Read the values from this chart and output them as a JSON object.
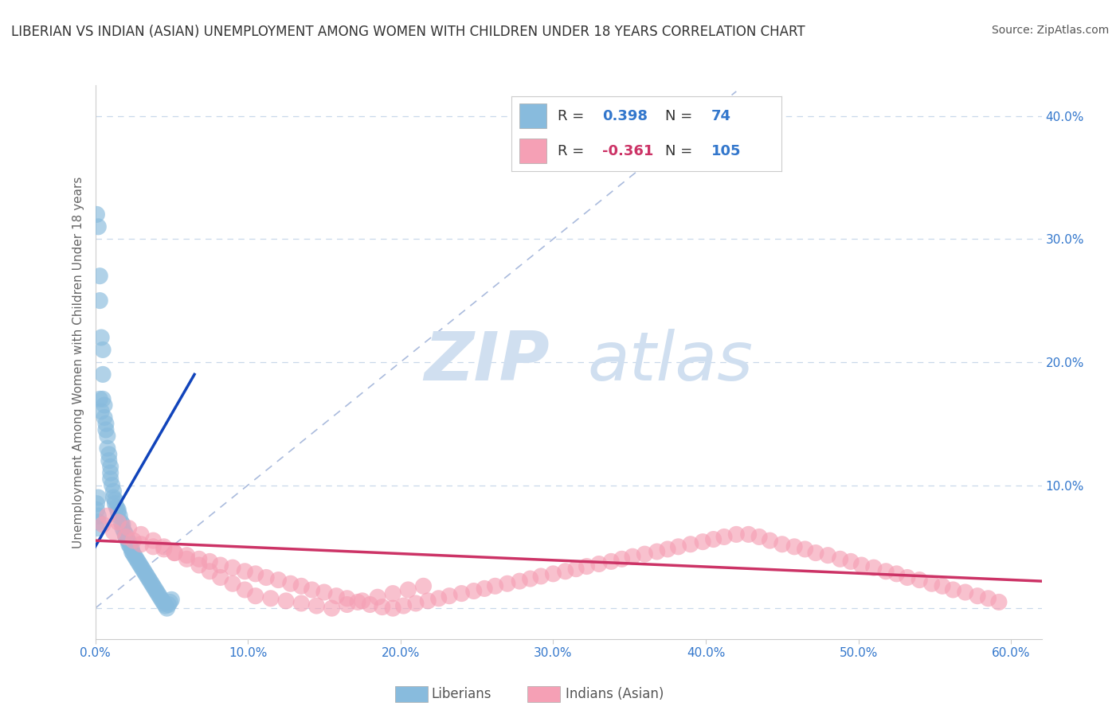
{
  "title": "LIBERIAN VS INDIAN (ASIAN) UNEMPLOYMENT AMONG WOMEN WITH CHILDREN UNDER 18 YEARS CORRELATION CHART",
  "source": "Source: ZipAtlas.com",
  "ylabel": "Unemployment Among Women with Children Under 18 years",
  "xmin": 0.0,
  "xmax": 0.62,
  "ymin": -0.025,
  "ymax": 0.425,
  "yticks": [
    0.0,
    0.1,
    0.2,
    0.3,
    0.4
  ],
  "ytick_labels": [
    "",
    "10.0%",
    "20.0%",
    "30.0%",
    "40.0%"
  ],
  "xticks": [
    0.0,
    0.1,
    0.2,
    0.3,
    0.4,
    0.5,
    0.6
  ],
  "xtick_labels": [
    "0.0%",
    "10.0%",
    "20.0%",
    "30.0%",
    "40.0%",
    "50.0%",
    "60.0%"
  ],
  "grid_color": "#c8d8ea",
  "background_color": "#ffffff",
  "liberian_color": "#88bbdd",
  "indian_color": "#f5a0b5",
  "liberian_line_color": "#1144bb",
  "indian_line_color": "#cc3366",
  "diagonal_color": "#aabbdd",
  "title_color": "#333333",
  "title_fontsize": 12,
  "axis_label_color": "#3377cc",
  "source_color": "#555555",
  "source_fontsize": 10,
  "R_liberian": 0.398,
  "N_liberian": 74,
  "R_indian": -0.361,
  "N_indian": 105,
  "watermark_zip": "ZIP",
  "watermark_atlas": "atlas",
  "watermark_color": "#d0dff0",
  "legend_color_R": "#3377cc",
  "legend_color_Rneg": "#cc3366",
  "liberian_points_x": [
    0.001,
    0.002,
    0.003,
    0.003,
    0.004,
    0.005,
    0.005,
    0.005,
    0.006,
    0.006,
    0.007,
    0.007,
    0.008,
    0.008,
    0.009,
    0.009,
    0.01,
    0.01,
    0.01,
    0.011,
    0.012,
    0.012,
    0.013,
    0.013,
    0.014,
    0.015,
    0.015,
    0.016,
    0.017,
    0.018,
    0.018,
    0.019,
    0.02,
    0.02,
    0.021,
    0.022,
    0.022,
    0.023,
    0.024,
    0.024,
    0.025,
    0.026,
    0.027,
    0.028,
    0.029,
    0.03,
    0.031,
    0.032,
    0.033,
    0.034,
    0.035,
    0.036,
    0.037,
    0.038,
    0.039,
    0.04,
    0.041,
    0.042,
    0.043,
    0.044,
    0.045,
    0.046,
    0.047,
    0.048,
    0.049,
    0.05,
    0.003,
    0.004,
    0.002,
    0.001,
    0.001,
    0.002,
    0.002,
    0.001
  ],
  "liberian_points_y": [
    0.32,
    0.31,
    0.27,
    0.25,
    0.22,
    0.21,
    0.19,
    0.17,
    0.165,
    0.155,
    0.15,
    0.145,
    0.14,
    0.13,
    0.125,
    0.12,
    0.115,
    0.11,
    0.105,
    0.1,
    0.095,
    0.09,
    0.088,
    0.085,
    0.082,
    0.08,
    0.078,
    0.075,
    0.07,
    0.068,
    0.065,
    0.062,
    0.06,
    0.058,
    0.056,
    0.054,
    0.052,
    0.05,
    0.048,
    0.046,
    0.044,
    0.042,
    0.04,
    0.038,
    0.036,
    0.034,
    0.032,
    0.03,
    0.028,
    0.026,
    0.024,
    0.022,
    0.02,
    0.018,
    0.016,
    0.014,
    0.012,
    0.01,
    0.008,
    0.006,
    0.004,
    0.002,
    0.0,
    0.003,
    0.005,
    0.007,
    0.17,
    0.16,
    0.09,
    0.085,
    0.08,
    0.075,
    0.07,
    0.065
  ],
  "indian_points_x": [
    0.005,
    0.012,
    0.02,
    0.025,
    0.03,
    0.038,
    0.045,
    0.052,
    0.06,
    0.068,
    0.075,
    0.082,
    0.09,
    0.098,
    0.105,
    0.112,
    0.12,
    0.128,
    0.135,
    0.142,
    0.15,
    0.158,
    0.165,
    0.172,
    0.18,
    0.188,
    0.195,
    0.202,
    0.21,
    0.218,
    0.225,
    0.232,
    0.24,
    0.248,
    0.255,
    0.262,
    0.27,
    0.278,
    0.285,
    0.292,
    0.3,
    0.308,
    0.315,
    0.322,
    0.33,
    0.338,
    0.345,
    0.352,
    0.36,
    0.368,
    0.375,
    0.382,
    0.39,
    0.398,
    0.405,
    0.412,
    0.42,
    0.428,
    0.435,
    0.442,
    0.45,
    0.458,
    0.465,
    0.472,
    0.48,
    0.488,
    0.495,
    0.502,
    0.51,
    0.518,
    0.525,
    0.532,
    0.54,
    0.548,
    0.555,
    0.562,
    0.57,
    0.578,
    0.585,
    0.592,
    0.008,
    0.015,
    0.022,
    0.03,
    0.038,
    0.045,
    0.052,
    0.06,
    0.068,
    0.075,
    0.082,
    0.09,
    0.098,
    0.105,
    0.115,
    0.125,
    0.135,
    0.145,
    0.155,
    0.165,
    0.175,
    0.185,
    0.195,
    0.205,
    0.215
  ],
  "indian_points_y": [
    0.068,
    0.062,
    0.058,
    0.055,
    0.052,
    0.05,
    0.048,
    0.045,
    0.043,
    0.04,
    0.038,
    0.035,
    0.033,
    0.03,
    0.028,
    0.025,
    0.023,
    0.02,
    0.018,
    0.015,
    0.013,
    0.01,
    0.008,
    0.005,
    0.003,
    0.001,
    0.0,
    0.002,
    0.004,
    0.006,
    0.008,
    0.01,
    0.012,
    0.014,
    0.016,
    0.018,
    0.02,
    0.022,
    0.024,
    0.026,
    0.028,
    0.03,
    0.032,
    0.034,
    0.036,
    0.038,
    0.04,
    0.042,
    0.044,
    0.046,
    0.048,
    0.05,
    0.052,
    0.054,
    0.056,
    0.058,
    0.06,
    0.06,
    0.058,
    0.055,
    0.052,
    0.05,
    0.048,
    0.045,
    0.043,
    0.04,
    0.038,
    0.035,
    0.033,
    0.03,
    0.028,
    0.025,
    0.023,
    0.02,
    0.018,
    0.015,
    0.013,
    0.01,
    0.008,
    0.005,
    0.075,
    0.07,
    0.065,
    0.06,
    0.055,
    0.05,
    0.045,
    0.04,
    0.035,
    0.03,
    0.025,
    0.02,
    0.015,
    0.01,
    0.008,
    0.006,
    0.004,
    0.002,
    0.0,
    0.003,
    0.006,
    0.009,
    0.012,
    0.015,
    0.018
  ],
  "lib_trend_x": [
    0.0,
    0.065
  ],
  "lib_trend_y": [
    0.05,
    0.19
  ],
  "ind_trend_x": [
    0.0,
    0.62
  ],
  "ind_trend_y": [
    0.055,
    0.022
  ]
}
